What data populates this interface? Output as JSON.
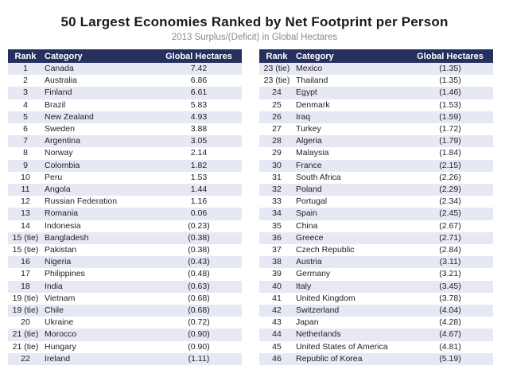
{
  "header": {
    "title": "50 Largest Economies Ranked by Net Footprint per Person",
    "subtitle": "2013 Surplus/(Deficit) in Global Hectares"
  },
  "table": {
    "columns": [
      "Rank",
      "Category",
      "Global Hectares"
    ]
  },
  "chart_data": {
    "type": "table",
    "title": "50 Largest Economies Ranked by Net Footprint per Person",
    "subtitle": "2013 Surplus/(Deficit) in Global Hectares",
    "columns": [
      "Rank",
      "Category",
      "Global Hectares"
    ],
    "left_rows": [
      [
        "1",
        "Canada",
        "7.42"
      ],
      [
        "2",
        "Australia",
        "6.86"
      ],
      [
        "3",
        "Finland",
        "6.61"
      ],
      [
        "4",
        "Brazil",
        "5.83"
      ],
      [
        "5",
        "New Zealand",
        "4.93"
      ],
      [
        "6",
        "Sweden",
        "3.88"
      ],
      [
        "7",
        "Argentina",
        "3.05"
      ],
      [
        "8",
        "Norway",
        "2.14"
      ],
      [
        "9",
        "Colombia",
        "1.82"
      ],
      [
        "10",
        "Peru",
        "1.53"
      ],
      [
        "11",
        "Angola",
        "1.44"
      ],
      [
        "12",
        "Russian Federation",
        "1.16"
      ],
      [
        "13",
        "Romania",
        "0.06"
      ],
      [
        "14",
        "Indonesia",
        "(0.23)"
      ],
      [
        "15 (tie)",
        "Bangladesh",
        "(0.38)"
      ],
      [
        "15 (tie)",
        "Pakistan",
        "(0.38)"
      ],
      [
        "16",
        "Nigeria",
        "(0.43)"
      ],
      [
        "17",
        "Philippines",
        "(0.48)"
      ],
      [
        "18",
        "India",
        "(0.63)"
      ],
      [
        "19 (tie)",
        "Vietnam",
        "(0.68)"
      ],
      [
        "19 (tie)",
        "Chile",
        "(0.68)"
      ],
      [
        "20",
        "Ukraine",
        "(0.72)"
      ],
      [
        "21 (tie)",
        "Morocco",
        "(0.90)"
      ],
      [
        "21 (tie)",
        "Hungary",
        "(0.90)"
      ],
      [
        "22",
        "Ireland",
        "(1.11)"
      ]
    ],
    "right_rows": [
      [
        "23 (tie)",
        "Mexico",
        "(1.35)"
      ],
      [
        "23 (tie)",
        "Thailand",
        "(1.35)"
      ],
      [
        "24",
        "Egypt",
        "(1.46)"
      ],
      [
        "25",
        "Denmark",
        "(1.53)"
      ],
      [
        "26",
        "Iraq",
        "(1.59)"
      ],
      [
        "27",
        "Turkey",
        "(1.72)"
      ],
      [
        "28",
        "Algeria",
        "(1.79)"
      ],
      [
        "29",
        "Malaysia",
        "(1.84)"
      ],
      [
        "30",
        "France",
        "(2.15)"
      ],
      [
        "31",
        "South Africa",
        "(2.26)"
      ],
      [
        "32",
        "Poland",
        "(2.29)"
      ],
      [
        "33",
        "Portugal",
        "(2.34)"
      ],
      [
        "34",
        "Spain",
        "(2.45)"
      ],
      [
        "35",
        "China",
        "(2.67)"
      ],
      [
        "36",
        "Greece",
        "(2.71)"
      ],
      [
        "37",
        "Czech Republic",
        "(2.84)"
      ],
      [
        "38",
        "Austria",
        "(3.11)"
      ],
      [
        "39",
        "Germany",
        "(3.21)"
      ],
      [
        "40",
        "Italy",
        "(3.45)"
      ],
      [
        "41",
        "United Kingdom",
        "(3.78)"
      ],
      [
        "42",
        "Switzerland",
        "(4.04)"
      ],
      [
        "43",
        "Japan",
        "(4.28)"
      ],
      [
        "44",
        "Netherlands",
        "(4.67)"
      ],
      [
        "45",
        "United States of America",
        "(4.81)"
      ],
      [
        "46",
        "Republic of Korea",
        "(5.19)"
      ]
    ]
  },
  "colors": {
    "header_bg": "#26305e",
    "header_text": "#ffffff",
    "stripe": "#e6e8f4"
  }
}
